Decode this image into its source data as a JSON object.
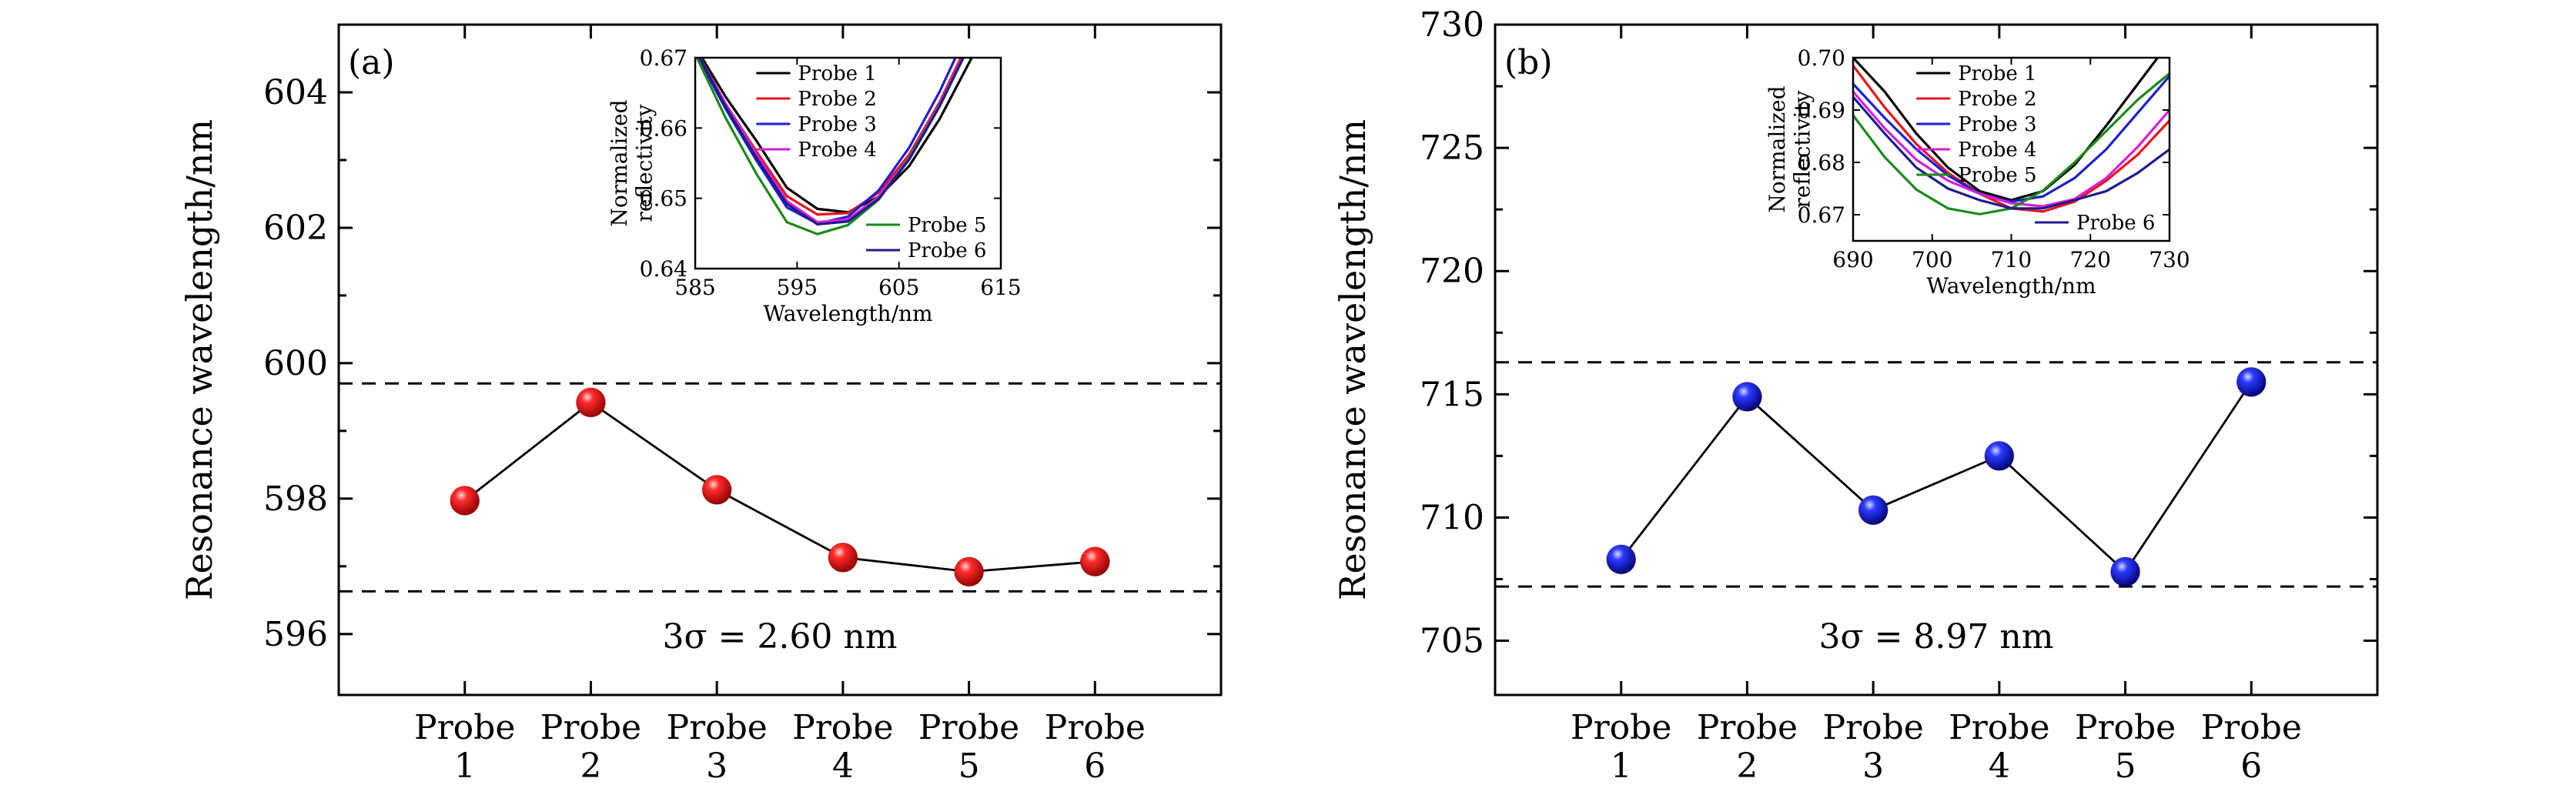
{
  "chart_data": [
    {
      "type": "line",
      "panel_label": "(a)",
      "ylabel": "Resonance wavelength/nm",
      "categories": [
        "Probe\n1",
        "Probe\n2",
        "Probe\n3",
        "Probe\n4",
        "Probe\n5",
        "Probe\n6"
      ],
      "ylim": [
        595.1,
        605.0
      ],
      "yticks": [
        596,
        598,
        600,
        602,
        604
      ],
      "series": [
        {
          "values": [
            597.97,
            599.42,
            598.13,
            597.13,
            596.92,
            597.07
          ],
          "color": "#e8141a",
          "marker": "sphere"
        }
      ],
      "reference_lines": [
        596.63,
        599.7
      ],
      "annotation": "3σ = 2.60 nm",
      "inset": {
        "xlabel": "Wavelength/nm",
        "ylabel": "Normalized\nreflectivity",
        "xlim": [
          585,
          615
        ],
        "ylim": [
          0.64,
          0.67
        ],
        "xticks": [
          585,
          595,
          605,
          615
        ],
        "yticks": [
          0.64,
          0.65,
          0.66,
          0.67
        ],
        "legend_top": [
          "Probe 1",
          "Probe 2",
          "Probe 3",
          "Probe 4"
        ],
        "legend_bottom": [
          "Probe 5",
          "Probe 6"
        ],
        "series": [
          {
            "name": "Probe 1",
            "color": "#000000",
            "x": [
              585,
              588,
              591,
              594,
              597,
              600,
              603,
              606,
              609,
              612,
              615
            ],
            "y": [
              0.6716,
              0.6644,
              0.6582,
              0.6515,
              0.6485,
              0.648,
              0.6502,
              0.6546,
              0.6613,
              0.6696,
              0.6784
            ]
          },
          {
            "name": "Probe 2",
            "color": "#e8141a",
            "x": [
              585,
              588,
              591,
              594,
              597,
              600,
              603,
              606,
              609,
              612,
              615
            ],
            "y": [
              0.6713,
              0.6634,
              0.6567,
              0.6503,
              0.6477,
              0.6479,
              0.6508,
              0.6562,
              0.6637,
              0.6728,
              0.682
            ]
          },
          {
            "name": "Probe 3",
            "color": "#1f1fd0",
            "x": [
              585,
              588,
              591,
              594,
              597,
              600,
              603,
              606,
              609,
              612,
              615
            ],
            "y": [
              0.6708,
              0.6627,
              0.6554,
              0.6487,
              0.6464,
              0.6474,
              0.6511,
              0.6572,
              0.6652,
              0.6745,
              0.6842
            ]
          },
          {
            "name": "Probe 4",
            "color": "#d81fd8",
            "x": [
              585,
              588,
              591,
              594,
              597,
              600,
              603,
              606,
              609,
              612,
              615
            ],
            "y": [
              0.6711,
              0.6634,
              0.6563,
              0.6496,
              0.6466,
              0.647,
              0.6502,
              0.6558,
              0.6634,
              0.6723,
              0.6818
            ]
          },
          {
            "name": "Probe 5",
            "color": "#1a8a1a",
            "x": [
              585,
              588,
              591,
              594,
              597,
              600,
              603,
              606,
              609,
              612,
              615
            ],
            "y": [
              0.6705,
              0.6614,
              0.6535,
              0.6466,
              0.6449,
              0.6462,
              0.6498,
              0.6557,
              0.6632,
              0.672,
              0.6815
            ]
          },
          {
            "name": "Probe 6",
            "color": "#1c1c8c",
            "x": [
              585,
              588,
              591,
              594,
              597,
              600,
              603,
              606,
              609,
              612,
              615
            ],
            "y": [
              0.6712,
              0.663,
              0.6558,
              0.6492,
              0.6463,
              0.6467,
              0.6499,
              0.6555,
              0.6631,
              0.672,
              0.6814
            ]
          }
        ]
      }
    },
    {
      "type": "line",
      "panel_label": "(b)",
      "ylabel": "Resonance wavelength/nm",
      "categories": [
        "Probe\n1",
        "Probe\n2",
        "Probe\n3",
        "Probe\n4",
        "Probe\n5",
        "Probe\n6"
      ],
      "ylim": [
        702.8,
        730.0
      ],
      "yticks": [
        705,
        710,
        715,
        720,
        725,
        730
      ],
      "series": [
        {
          "values": [
            708.3,
            714.9,
            710.3,
            712.5,
            707.8,
            715.5
          ],
          "color": "#1f1fd8",
          "marker": "sphere"
        }
      ],
      "reference_lines": [
        707.2,
        716.3
      ],
      "annotation": "3σ = 8.97 nm",
      "inset": {
        "xlabel": "Wavelength/nm",
        "ylabel": "Normalized\nreflectivity",
        "xlim": [
          690,
          730
        ],
        "ylim": [
          0.665,
          0.7
        ],
        "xticks": [
          690,
          700,
          710,
          720,
          730
        ],
        "yticks": [
          0.67,
          0.68,
          0.69,
          0.7
        ],
        "legend_top": [
          "Probe 1",
          "Probe 2",
          "Probe 3",
          "Probe 4",
          "Probe 5"
        ],
        "legend_bottom": [
          "Probe 6"
        ],
        "series": [
          {
            "name": "Probe 1",
            "color": "#000000",
            "x": [
              690,
              694,
              698,
              702,
              706,
              710,
              714,
              718,
              722,
              726,
              730
            ],
            "y": [
              0.7,
              0.6935,
              0.6855,
              0.679,
              0.6745,
              0.6728,
              0.6745,
              0.6795,
              0.687,
              0.695,
              0.703
            ]
          },
          {
            "name": "Probe 2",
            "color": "#e8141a",
            "x": [
              690,
              694,
              698,
              702,
              706,
              710,
              714,
              718,
              722,
              726,
              730
            ],
            "y": [
              0.6985,
              0.6905,
              0.6835,
              0.678,
              0.674,
              0.6712,
              0.6706,
              0.6725,
              0.6765,
              0.6815,
              0.688
            ]
          },
          {
            "name": "Probe 3",
            "color": "#1f1fd0",
            "x": [
              690,
              694,
              698,
              702,
              706,
              710,
              714,
              718,
              722,
              726,
              730
            ],
            "y": [
              0.695,
              0.6885,
              0.6825,
              0.6775,
              0.674,
              0.6725,
              0.6735,
              0.677,
              0.6825,
              0.6895,
              0.6965
            ]
          },
          {
            "name": "Probe 4",
            "color": "#d81fd8",
            "x": [
              690,
              694,
              698,
              702,
              706,
              710,
              714,
              718,
              722,
              726,
              730
            ],
            "y": [
              0.6935,
              0.6865,
              0.6805,
              0.6765,
              0.674,
              0.6722,
              0.6716,
              0.673,
              0.677,
              0.683,
              0.69
            ]
          },
          {
            "name": "Probe 5",
            "color": "#1a8a1a",
            "x": [
              690,
              694,
              698,
              702,
              706,
              710,
              714,
              718,
              722,
              726,
              730
            ],
            "y": [
              0.689,
              0.681,
              0.6748,
              0.6712,
              0.6701,
              0.6712,
              0.6746,
              0.68,
              0.686,
              0.692,
              0.697
            ]
          },
          {
            "name": "Probe 6",
            "color": "#1c1c8c",
            "x": [
              690,
              694,
              698,
              702,
              706,
              710,
              714,
              718,
              722,
              726,
              730
            ],
            "y": [
              0.6925,
              0.6855,
              0.679,
              0.675,
              0.6728,
              0.6712,
              0.6712,
              0.6728,
              0.6745,
              0.678,
              0.6825
            ]
          }
        ]
      }
    }
  ]
}
